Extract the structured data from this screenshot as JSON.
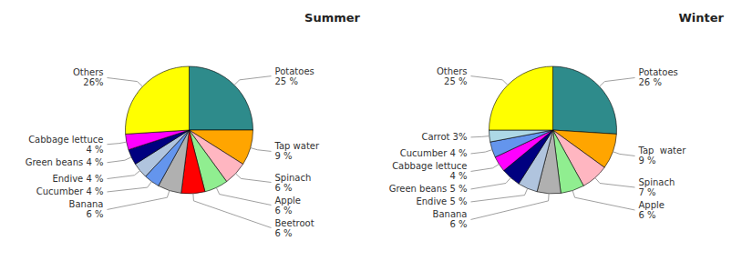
{
  "chart_data": [
    {
      "type": "pie",
      "title": "Summer",
      "categories": [
        "Potatoes",
        "Tap water",
        "Spinach",
        "Apple",
        "Beetroot",
        "Banana",
        "Cucumber",
        "Endive",
        "Green beans",
        "Cabbage lettuce",
        "Others"
      ],
      "values": [
        25,
        9,
        6,
        6,
        6,
        6,
        4,
        4,
        4,
        4,
        26
      ],
      "value_labels": [
        "Potatoes\n25 %",
        "Tap water\n9 %",
        "Spinach\n6 %",
        "Apple\n6 %",
        "Beetroot\n6 %",
        "Banana\n6 %",
        "Cucumber 4 %",
        "Endive 4 %",
        "Green beans 4 %",
        "Cabbage lettuce\n4 %",
        "Others\n26%"
      ],
      "colors": [
        "#2e8b8b",
        "#ffa500",
        "#ffb6c1",
        "#90ee90",
        "#ff0000",
        "#b0b0b0",
        "#6495ed",
        "#b0c4de",
        "#000080",
        "#ff00ff",
        "#ffff00"
      ],
      "data_labels": true
    },
    {
      "type": "pie",
      "title": "Winter",
      "categories": [
        "Potatoes",
        "Tap water",
        "Spinach",
        "Apple",
        "Banana",
        "Endive",
        "Green beans",
        "Cabbage lettuce",
        "Cucumber",
        "Carrot",
        "Others"
      ],
      "values": [
        26,
        9,
        7,
        6,
        6,
        5,
        5,
        4,
        4,
        3,
        25
      ],
      "value_labels": [
        "Potatoes\n26 %",
        "Tap  water\n9 %",
        "Spinach\n7 %",
        "Apple\n6 %",
        "Banana\n6 %",
        "Endive 5 %",
        "Green beans 5 %",
        "Cabbage lettuce\n4 %",
        "Cucumber 4 %",
        "Carrot 3%",
        "Others\n25 %"
      ],
      "colors": [
        "#2e8b8b",
        "#ffa500",
        "#ffb6c1",
        "#90ee90",
        "#b0b0b0",
        "#b0c4de",
        "#000080",
        "#ff00ff",
        "#6495ed",
        "#add8e6",
        "#ffff00"
      ],
      "data_labels": true
    }
  ]
}
